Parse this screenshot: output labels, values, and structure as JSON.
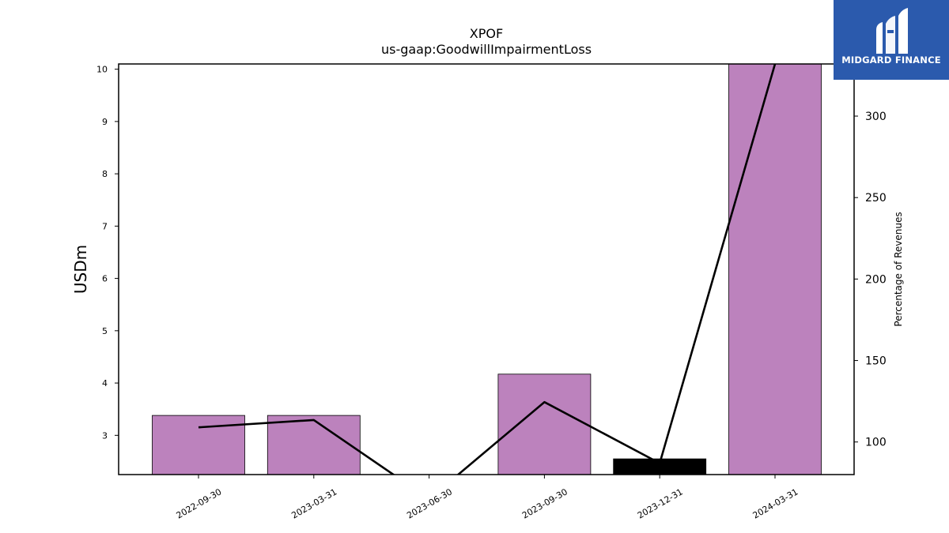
{
  "brand": {
    "name": "MIDGARD FINANCE",
    "bg_color": "#2b5aad"
  },
  "chart_data": {
    "type": "bar",
    "title": "XPOF",
    "subtitle": "us-gaap:GoodwillImpairmentLoss",
    "ylabel": "USDm",
    "y2label": "Percentage of Revenues",
    "categories": [
      "2022-09-30",
      "2023-03-31",
      "2023-06-30",
      "2023-09-30",
      "2023-12-31",
      "2024-03-31"
    ],
    "ylim": [
      2.25,
      10.1
    ],
    "y2lim": [
      80,
      332
    ],
    "yticks": [
      3,
      4,
      5,
      6,
      7,
      8,
      9,
      10
    ],
    "y2ticks": [
      100,
      150,
      200,
      250,
      300
    ],
    "series": [
      {
        "kind": "bar",
        "axis": "left",
        "values": [
          3.38,
          3.38,
          null,
          4.17,
          2.55,
          10.1
        ],
        "colors": [
          "#bc82bd",
          "#bc82bd",
          "#bc82bd",
          "#bc82bd",
          "#000000",
          "#bc82bd"
        ]
      },
      {
        "kind": "line",
        "axis": "right",
        "color": "#000000",
        "values": [
          109,
          113.5,
          65,
          124.5,
          87,
          332
        ]
      }
    ],
    "grid": false,
    "legend": "none"
  }
}
